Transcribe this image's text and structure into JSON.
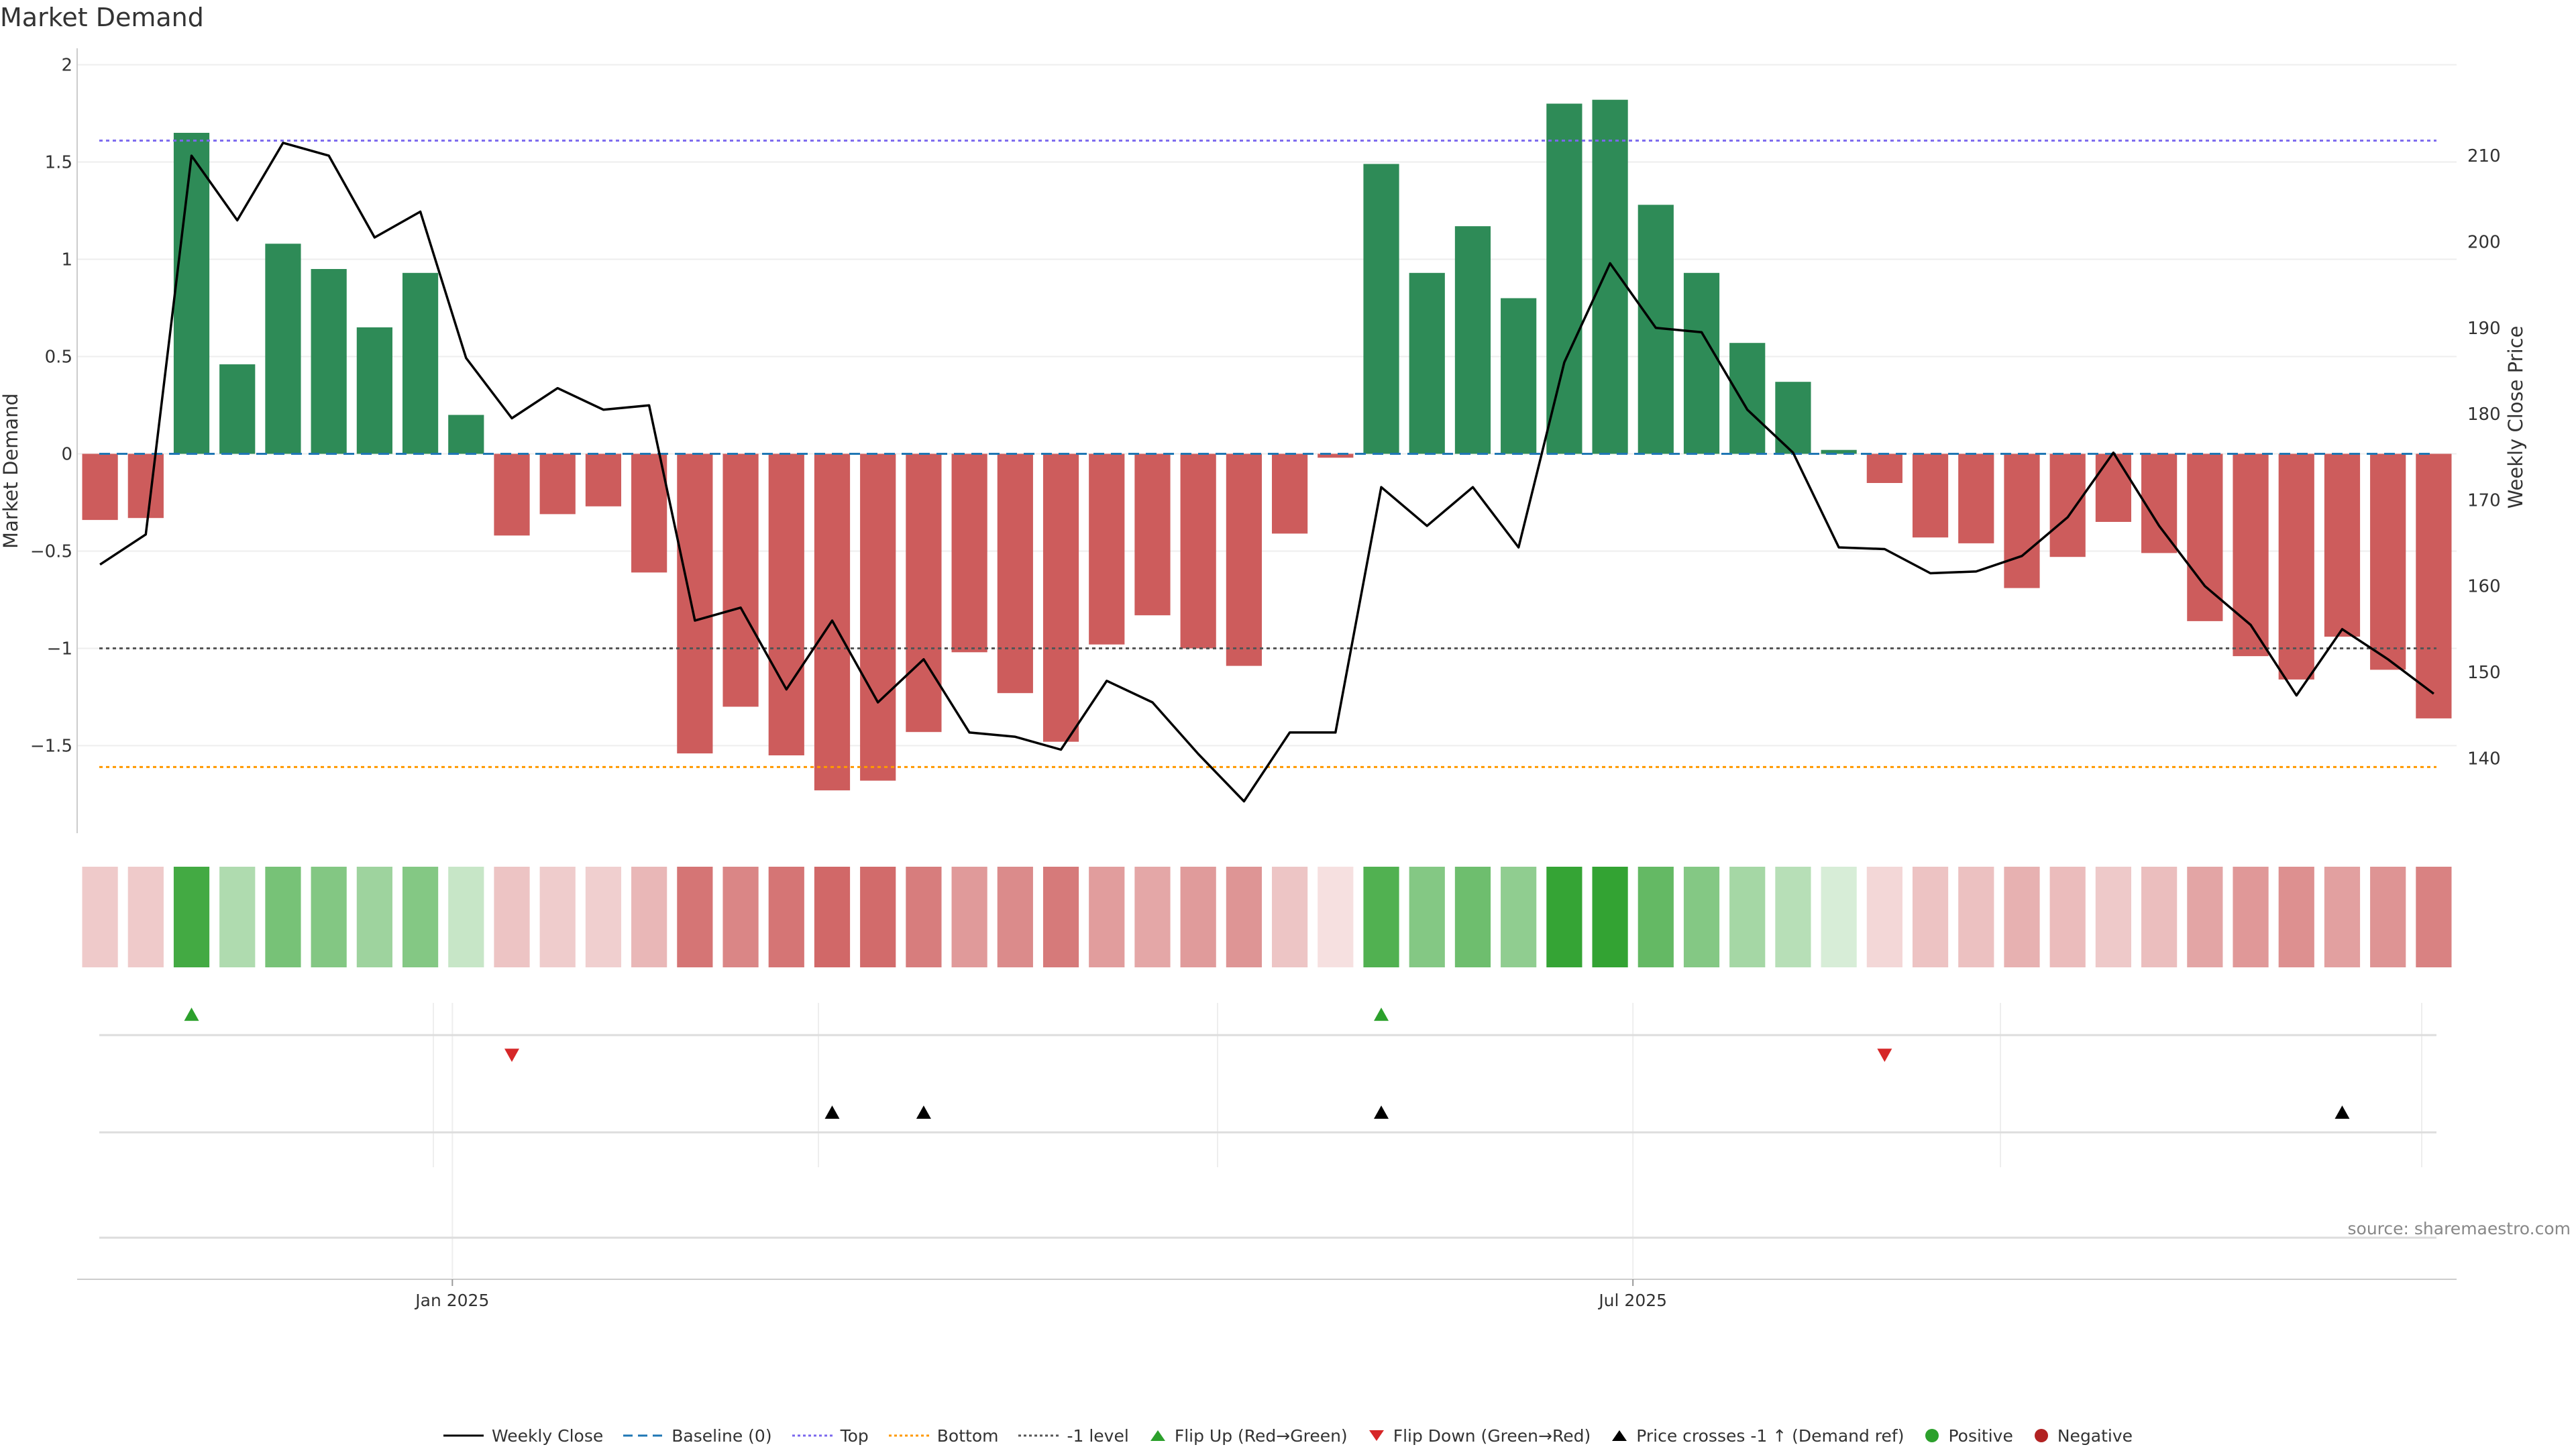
{
  "title": "Market Demand",
  "source": "source: sharemaestro.com",
  "colors": {
    "positive": "#2e8b57",
    "negative": "#cd5c5c",
    "price_line": "#000000",
    "baseline": "#1f77b4",
    "top": "#7b68ee",
    "bottom": "#ff9900",
    "minus_one": "#555555",
    "flip_up": "#2ca02c",
    "flip_down": "#d62728",
    "price_cross": "#000000"
  },
  "chart_data": {
    "type": "bar",
    "title": "Market Demand",
    "ylabel": "Market Demand",
    "y2label": "Weekly Close Price",
    "ylim": [
      -1.95,
      2.05
    ],
    "y2lim": [
      131.3,
      221.7
    ],
    "yticks": [
      -1.5,
      -1,
      -0.5,
      0,
      0.5,
      1,
      1.5,
      2
    ],
    "ytick_labels": [
      "−1.5",
      "−1",
      "−0.5",
      "0",
      "0.5",
      "1",
      "1.5",
      "2"
    ],
    "y2ticks": [
      140,
      150,
      160,
      170,
      180,
      190,
      200,
      210
    ],
    "xtick_labels": [
      {
        "label": "Jan 2025",
        "week_index": 7.7
      },
      {
        "label": "Jul 2025",
        "week_index": 33.5
      }
    ],
    "reference_lines": {
      "baseline": 0,
      "top": 1.61,
      "bottom": -1.61,
      "minus_one": -1.0
    },
    "demand": [
      -0.34,
      -0.33,
      1.65,
      0.46,
      1.08,
      0.95,
      0.65,
      0.93,
      0.2,
      -0.42,
      -0.31,
      -0.27,
      -0.61,
      -1.54,
      -1.3,
      -1.55,
      -1.73,
      -1.68,
      -1.43,
      -1.02,
      -1.23,
      -1.48,
      -0.98,
      -0.83,
      -1.0,
      -1.09,
      -0.41,
      -0.02,
      1.49,
      0.93,
      1.17,
      0.8,
      1.8,
      1.82,
      1.28,
      0.93,
      0.57,
      0.37,
      0.02,
      -0.15,
      -0.43,
      -0.46,
      -0.69,
      -0.53,
      -0.35,
      -0.51,
      -0.86,
      -1.04,
      -1.16,
      -0.94,
      -1.11,
      -1.36
    ],
    "weekly_close": [
      162.5,
      166,
      210,
      202.5,
      211.5,
      210,
      200.5,
      203.5,
      186.5,
      179.5,
      183,
      180.5,
      181,
      156,
      157.5,
      148,
      156,
      146.5,
      151.5,
      143,
      142.5,
      141,
      149,
      146.5,
      140.5,
      135,
      143,
      143,
      171.5,
      167,
      171.5,
      164.5,
      186,
      197.5,
      190,
      189.5,
      180.5,
      175.5,
      164.5,
      164.3,
      161.5,
      161.7,
      163.5,
      168,
      175.5,
      167,
      160,
      155.5,
      147.3,
      155,
      151.5,
      147.5
    ],
    "flip_up_weeks": [
      2,
      28
    ],
    "flip_down_weeks": [
      9,
      39
    ],
    "price_cross_weeks": [
      16,
      18,
      28,
      49
    ],
    "legend": [
      "Weekly Close",
      "Baseline (0)",
      "Top",
      "Bottom",
      "-1 level",
      "Flip Up (Red→Green)",
      "Flip Down (Green→Red)",
      "Price crosses -1 ↑ (Demand ref)",
      "Positive",
      "Negative"
    ]
  }
}
